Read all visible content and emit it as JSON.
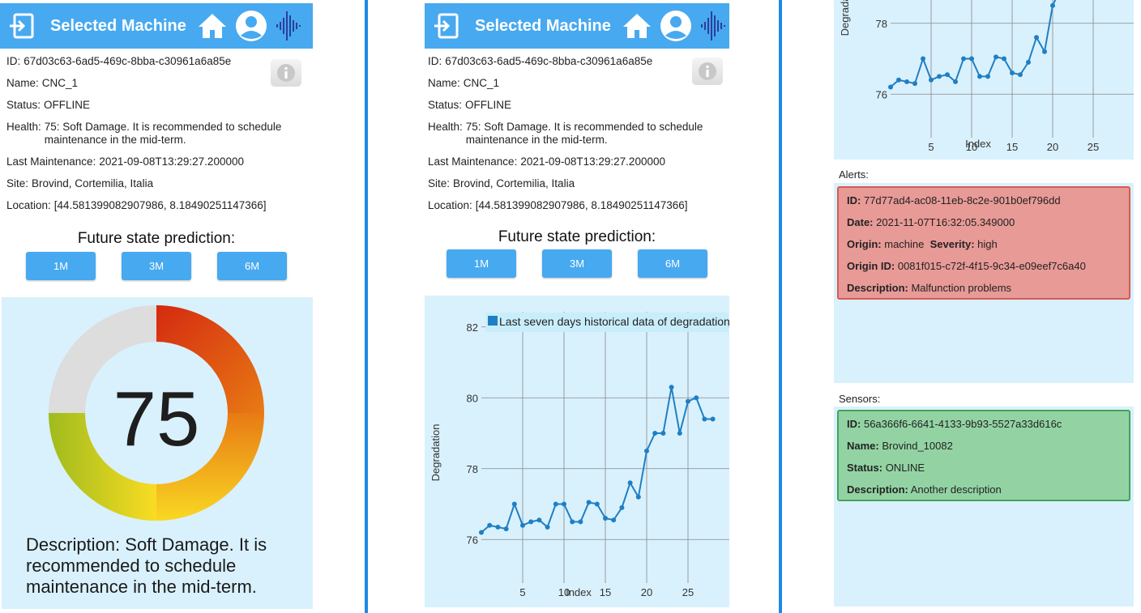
{
  "colors": {
    "header": "#47a9f0",
    "divider": "#1a8ae6",
    "chart_bg": "#d9f1fd",
    "line": "#1f7fc4",
    "alert_bg": "#e89a96",
    "sensor_bg": "#93d3a3"
  },
  "header": {
    "title": "Selected Machine",
    "icons": [
      "exit-icon",
      "home-icon",
      "user-icon",
      "waveform-icon"
    ]
  },
  "machine": {
    "id_label": "ID:",
    "id": "67d03c63-6ad5-469c-8bba-c30961a6a85e",
    "name_label": "Name:",
    "name": "CNC_1",
    "status_label": "Status:",
    "status": "OFFLINE",
    "health_label": "Health:",
    "health": "75: Soft Damage. It is recommended to schedule maintenance in the mid-term.",
    "maint_label": "Last Maintenance:",
    "maint": "2021-09-08T13:29:27.200000",
    "site_label": "Site:",
    "site": "Brovind, Cortemilia, Italia",
    "loc_label": "Location:",
    "loc": "[44.581399082907986, 8.18490251147366]"
  },
  "prediction": {
    "title": "Future state prediction:",
    "buttons": [
      "1M",
      "3M",
      "6M"
    ]
  },
  "gauge": {
    "value": "75",
    "value_fraction": 0.75,
    "description": "Description: Soft Damage. It is recommended to schedule maintenance in the mid-term."
  },
  "chart_data": [
    {
      "type": "line",
      "legend": "Last seven days historical data of degradation",
      "xlabel": "Index",
      "ylabel": "Degradation",
      "xlim": [
        0,
        30
      ],
      "ylim": [
        75,
        82.2
      ],
      "xticks": [
        "5",
        "10",
        "15",
        "20",
        "25"
      ],
      "yticks": [
        "76",
        "78",
        "80",
        "82"
      ],
      "grid": true,
      "series": [
        {
          "name": "Last seven days historical data of degradation",
          "x": [
            0,
            1,
            2,
            3,
            4,
            5,
            6,
            7,
            8,
            9,
            10,
            11,
            12,
            13,
            14,
            15,
            16,
            17,
            18,
            19,
            20,
            21,
            22,
            23,
            24,
            25,
            26,
            27,
            28
          ],
          "y": [
            76.2,
            76.4,
            76.35,
            76.3,
            77.0,
            76.4,
            76.5,
            76.55,
            76.35,
            77.0,
            77.0,
            76.5,
            76.5,
            77.05,
            77.0,
            76.6,
            76.55,
            76.9,
            77.6,
            77.2,
            78.5,
            79.0,
            79.0,
            80.3,
            79.0,
            79.9,
            80.0,
            79.4,
            79.4
          ]
        }
      ]
    }
  ],
  "alerts": {
    "label": "Alerts:",
    "id_label": "ID:",
    "id": "77d77ad4-ac08-11eb-8c2e-901b0ef796dd",
    "date_label": "Date:",
    "date": "2021-11-07T16:32:05.349000",
    "origin_label": "Origin:",
    "origin": "machine",
    "severity_label": "Severity:",
    "severity": "high",
    "origin_id_label": "Origin ID:",
    "origin_id": "0081f015-c72f-4f15-9c34-e09eef7c6a40",
    "desc_label": "Description:",
    "desc": "Malfunction problems"
  },
  "sensors": {
    "label": "Sensors:",
    "id_label": "ID:",
    "id": "56a366f6-6641-4133-9b93-5527a33d616c",
    "name_label": "Name:",
    "name": "Brovind_10082",
    "status_label": "Status:",
    "status": "ONLINE",
    "desc_label": "Description:",
    "desc": "Another description"
  }
}
